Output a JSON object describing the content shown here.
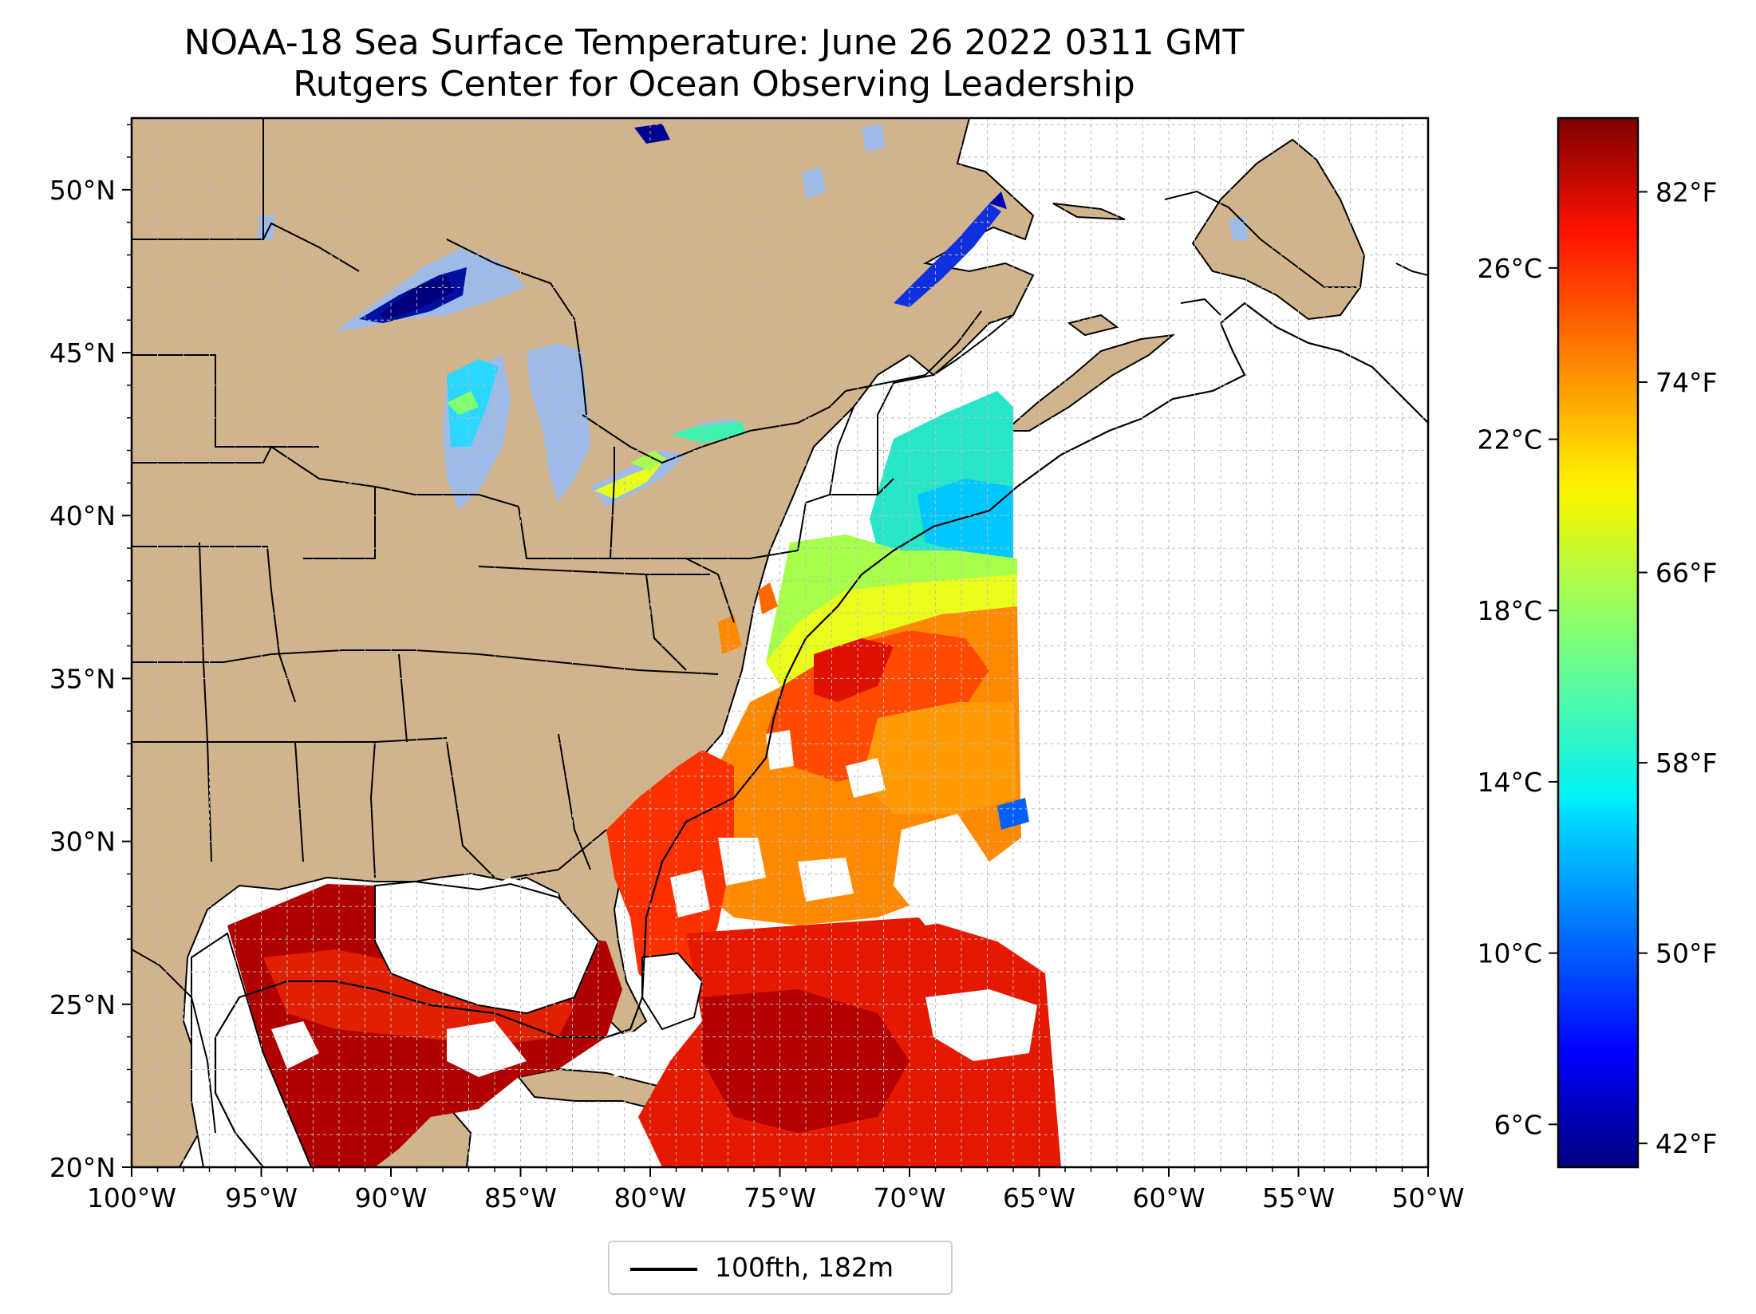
{
  "title": "NOAA-18 Sea Surface Temperature: June 26 2022 0311 GMT",
  "subtitle": "Rutgers Center for Ocean Observing Leadership",
  "map": {
    "lon_range": [
      -100,
      -50
    ],
    "lat_range": [
      20,
      52.2
    ],
    "lon_ticks": [
      "100°W",
      "95°W",
      "90°W",
      "85°W",
      "80°W",
      "75°W",
      "70°W",
      "65°W",
      "60°W",
      "55°W",
      "50°W"
    ],
    "lat_ticks": [
      "20°N",
      "25°N",
      "30°N",
      "35°N",
      "40°N",
      "45°N",
      "50°N"
    ],
    "gridlines": true,
    "land_color": "#d2b48c",
    "lake_color": "#9dbbe6",
    "ocean_no_data_color": "#ffffff",
    "isobath_color": "#000000"
  },
  "colorbar": {
    "colormap": "jet",
    "range_celsius": [
      5,
      29.5
    ],
    "celsius_ticks": [
      "6°C",
      "10°C",
      "14°C",
      "18°C",
      "22°C",
      "26°C"
    ],
    "fahrenheit_ticks": [
      "42°F",
      "50°F",
      "58°F",
      "66°F",
      "74°F",
      "82°F"
    ]
  },
  "legend": {
    "label": "100fth, 182m",
    "placement": "bottom-center"
  }
}
